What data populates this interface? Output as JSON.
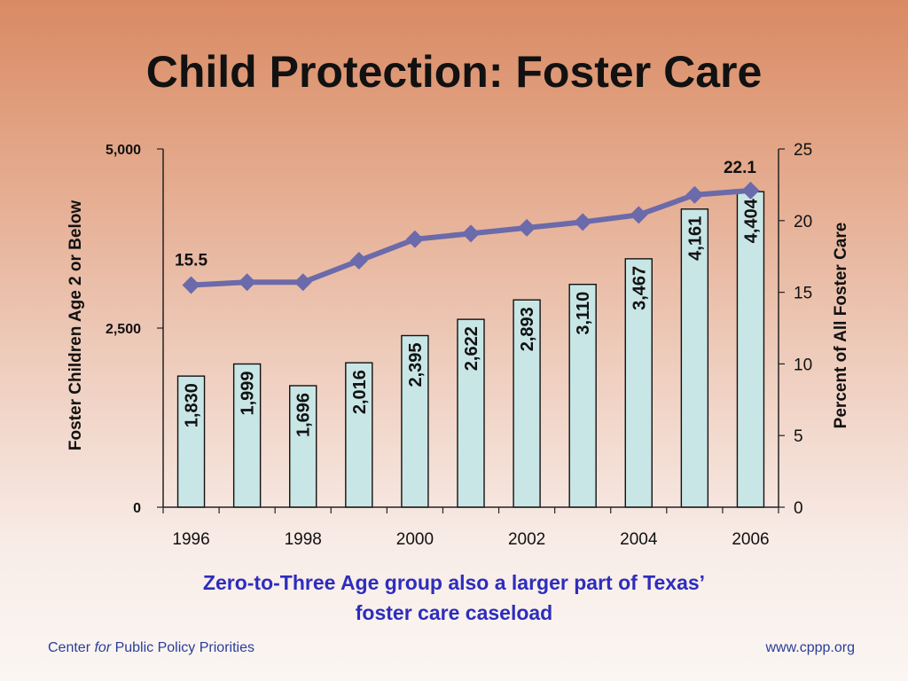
{
  "slide": {
    "title": "Child Protection: Foster Care",
    "subtitle_line1": "Zero-to-Three Age group also a larger part of Texas’",
    "subtitle_line2": "foster care caseload"
  },
  "footer": {
    "left_pre": "Center ",
    "left_italic": "for",
    "left_post": " Public Policy Priorities",
    "right": "www.cppp.org"
  },
  "chart_data": {
    "type": "bar",
    "categories": [
      "1996",
      "1997",
      "1998",
      "1999",
      "2000",
      "2001",
      "2002",
      "2003",
      "2004",
      "2005",
      "2006"
    ],
    "x_tick_labels": [
      "1996",
      "1998",
      "2000",
      "2002",
      "2004",
      "2006"
    ],
    "bar_values": [
      1830,
      1999,
      1696,
      2016,
      2395,
      2622,
      2893,
      3110,
      3467,
      4161,
      4404
    ],
    "bar_labels": [
      "1,830",
      "1,999",
      "1,696",
      "2,016",
      "2,395",
      "2,622",
      "2,893",
      "3,110",
      "3,467",
      "4,161",
      "4,404"
    ],
    "line_values": [
      15.5,
      15.7,
      15.7,
      17.2,
      18.7,
      19.1,
      19.5,
      19.9,
      20.4,
      21.8,
      22.1
    ],
    "line_labels": {
      "first": "15.5",
      "last": "22.1"
    },
    "ylabel_left": "Foster Children Age 2 or Below",
    "ylabel_right": "Percent of All Foster Care",
    "ylim_left": [
      0,
      5000
    ],
    "yticks_left": [
      "0",
      "2,500",
      "5,000"
    ],
    "ylim_right": [
      0,
      25
    ],
    "yticks_right": [
      "0",
      "5",
      "10",
      "15",
      "20",
      "25"
    ],
    "grid": false,
    "colors": {
      "bar_fill": "#c9e6e6",
      "bar_stroke": "#111111",
      "line": "#6b6aaa"
    }
  }
}
